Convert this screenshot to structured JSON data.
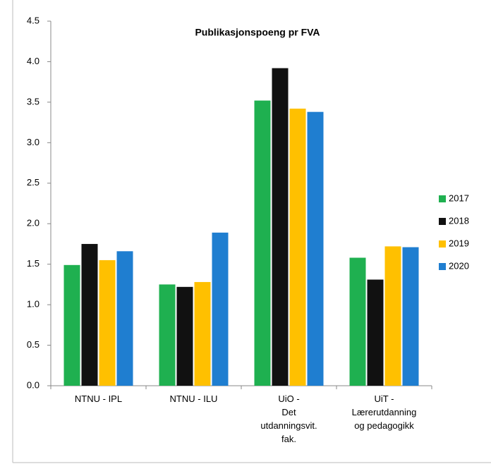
{
  "chart_data": {
    "type": "bar",
    "title": "Publikasjonspoeng pr FVA",
    "categories": [
      "NTNU - IPL",
      "NTNU - ILU",
      "UiO -\nDet\nutdanningsvit.\nfak.",
      "UiT -\nLærerutdanning\nog pedagogikk"
    ],
    "series": [
      {
        "name": "2017",
        "color": "#1fb050",
        "values": [
          1.49,
          1.25,
          3.52,
          1.58
        ]
      },
      {
        "name": "2018",
        "color": "#111111",
        "values": [
          1.75,
          1.22,
          3.92,
          1.31
        ]
      },
      {
        "name": "2019",
        "color": "#ffc000",
        "values": [
          1.55,
          1.28,
          3.42,
          1.72
        ]
      },
      {
        "name": "2020",
        "color": "#1f7ed0",
        "values": [
          1.66,
          1.89,
          3.38,
          1.71
        ]
      }
    ],
    "ylim": [
      0,
      4.5
    ],
    "yticks": [
      {
        "value": 0,
        "label": "0.0"
      },
      0.5,
      {
        "value": 1,
        "label": "1.0"
      },
      1.5,
      {
        "value": 2,
        "label": "2.0"
      },
      2.5,
      {
        "value": 3,
        "label": "3.0"
      },
      3.5,
      {
        "value": 4,
        "label": "4.0"
      },
      4.5
    ],
    "grid": false,
    "legend": "right"
  }
}
